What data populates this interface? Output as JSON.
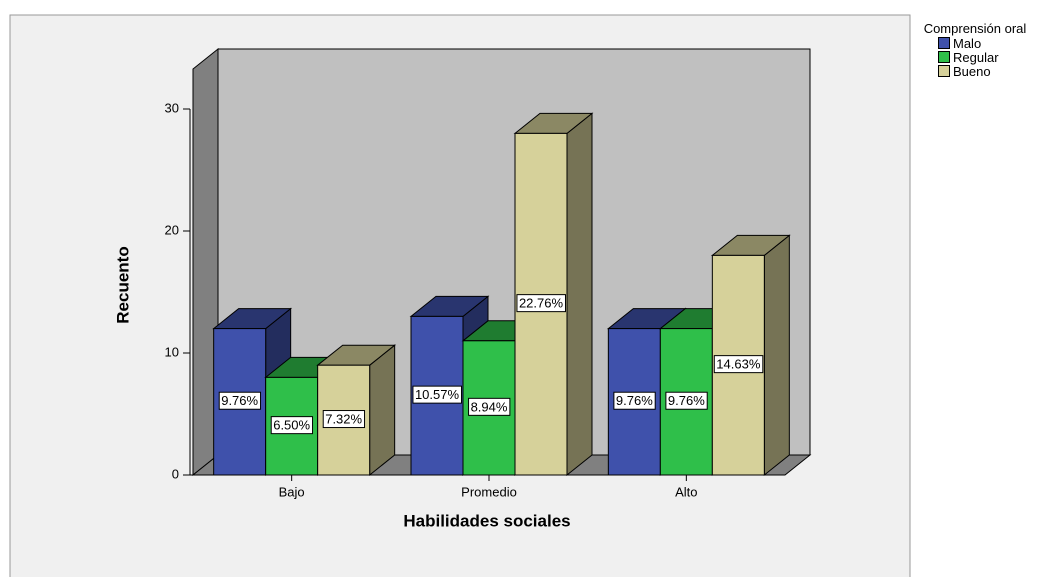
{
  "chart_data": {
    "type": "bar3d",
    "x_label": "Habilidades sociales",
    "y_label": "Recuento",
    "legend_title": "Comprensión oral",
    "categories": [
      "Bajo",
      "Promedio",
      "Alto"
    ],
    "series": [
      {
        "name": "Malo",
        "color": "#3f51ab",
        "values": [
          12,
          13,
          12
        ],
        "labels": [
          "9.76%",
          "10.57%",
          "9.76%"
        ]
      },
      {
        "name": "Regular",
        "color": "#2fbf4a",
        "values": [
          8,
          11,
          12
        ],
        "labels": [
          "6.50%",
          "8.94%",
          "9.76%"
        ]
      },
      {
        "name": "Bueno",
        "color": "#d6d19a",
        "values": [
          9,
          28,
          18
        ],
        "labels": [
          "7.32%",
          "22.76%",
          "14.63%"
        ]
      }
    ],
    "ylim": [
      0,
      30
    ],
    "yticks": [
      0,
      10,
      20,
      30
    ],
    "legend": "right"
  }
}
